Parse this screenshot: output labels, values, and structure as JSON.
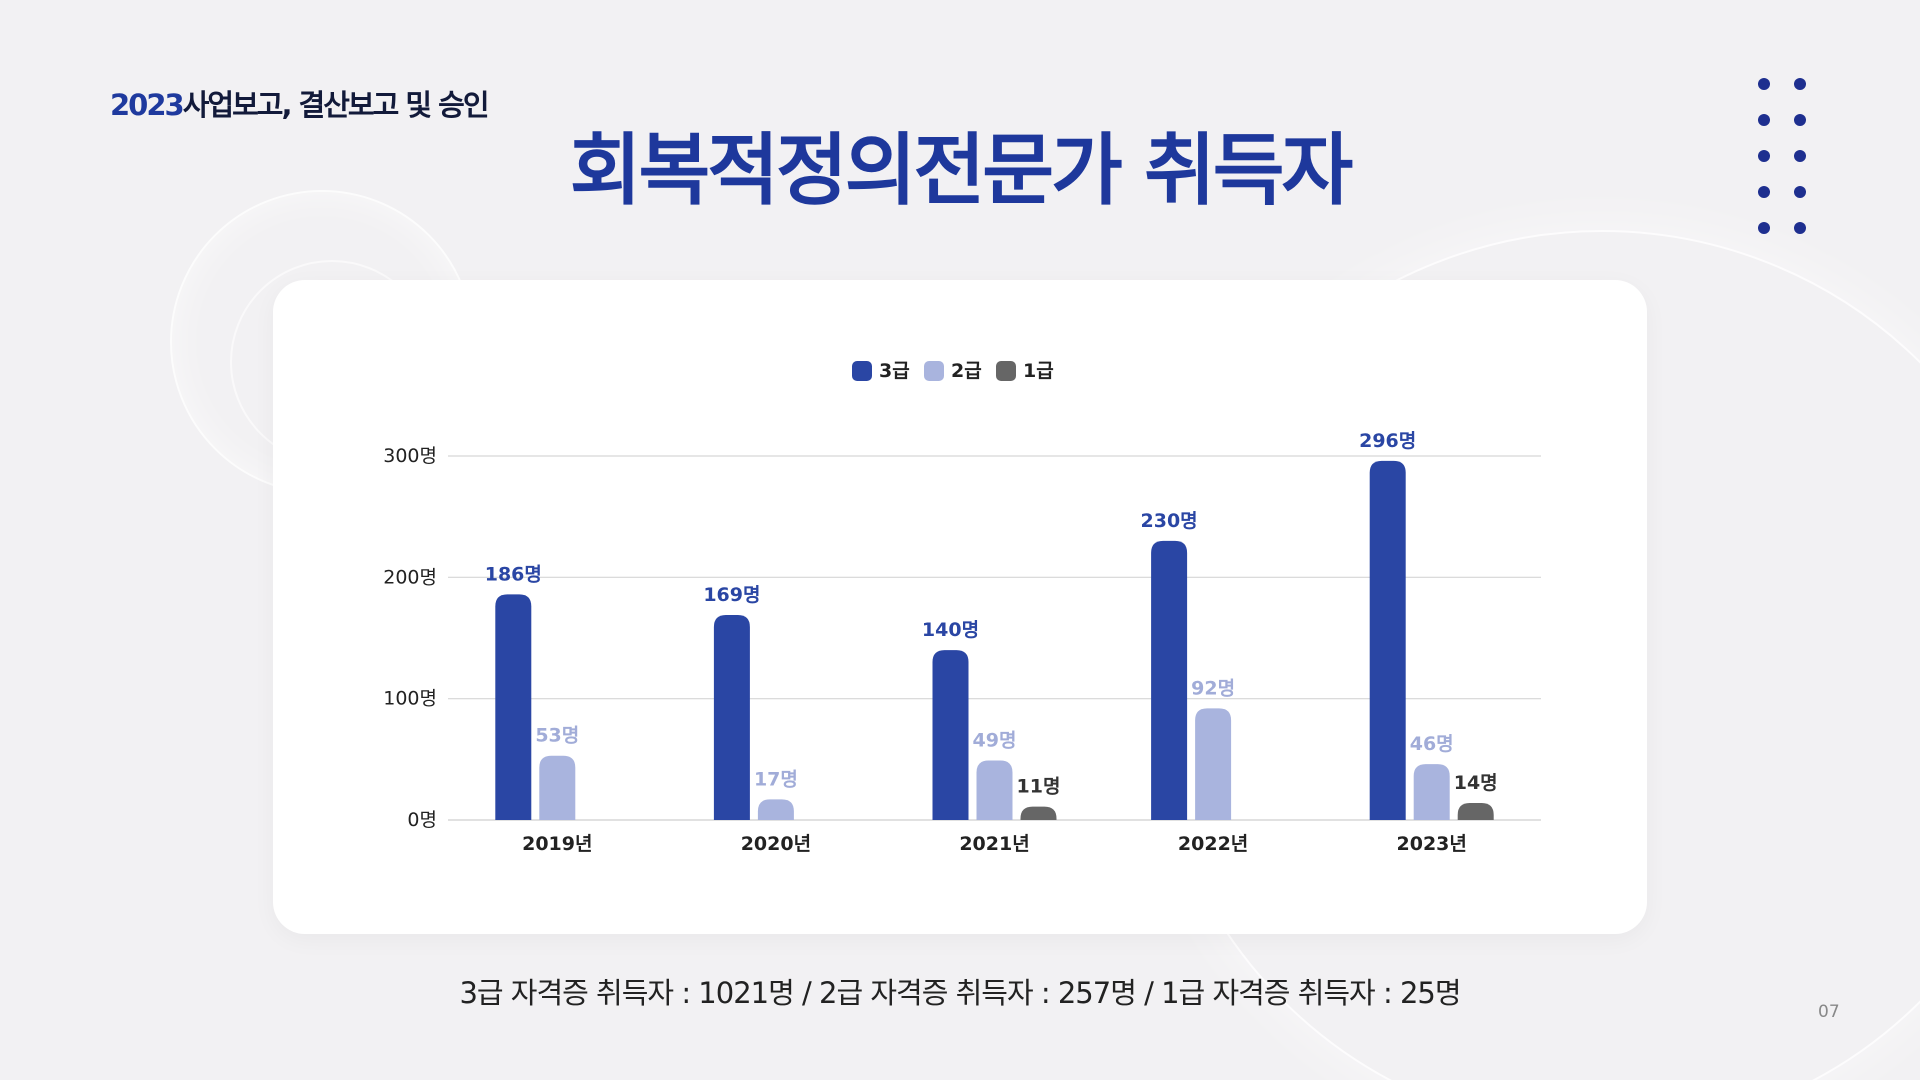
{
  "header": {
    "year": "2023",
    "subtitle": "사업보고, 결산보고 및 승인"
  },
  "title": "회복적정의전문가 취득자",
  "chart_data": {
    "type": "bar",
    "categories": [
      "2019년",
      "2020년",
      "2021년",
      "2022년",
      "2023년"
    ],
    "series": [
      {
        "name": "3급",
        "values": [
          186,
          169,
          140,
          230,
          296
        ],
        "color": "#2a46a4",
        "label_color": "#2a46a4"
      },
      {
        "name": "2급",
        "values": [
          53,
          17,
          49,
          92,
          46
        ],
        "color": "#a9b4de",
        "label_color": "#a1acd8"
      },
      {
        "name": "1급",
        "values": [
          null,
          null,
          11,
          null,
          14
        ],
        "color": "#666666",
        "label_color": "#333333"
      }
    ],
    "unit": "명",
    "ylim": [
      0,
      300
    ],
    "yticks": [
      0,
      100,
      200,
      300
    ],
    "ytick_labels": [
      "0명",
      "100명",
      "200명",
      "300명"
    ],
    "legend_position": "top-center",
    "grid": true
  },
  "summary": "3급 자격증 취득자 : 1021명 / 2급 자격증 취득자 : 257명 / 1급 자격증 취득자 : 25명",
  "page_number": "07"
}
